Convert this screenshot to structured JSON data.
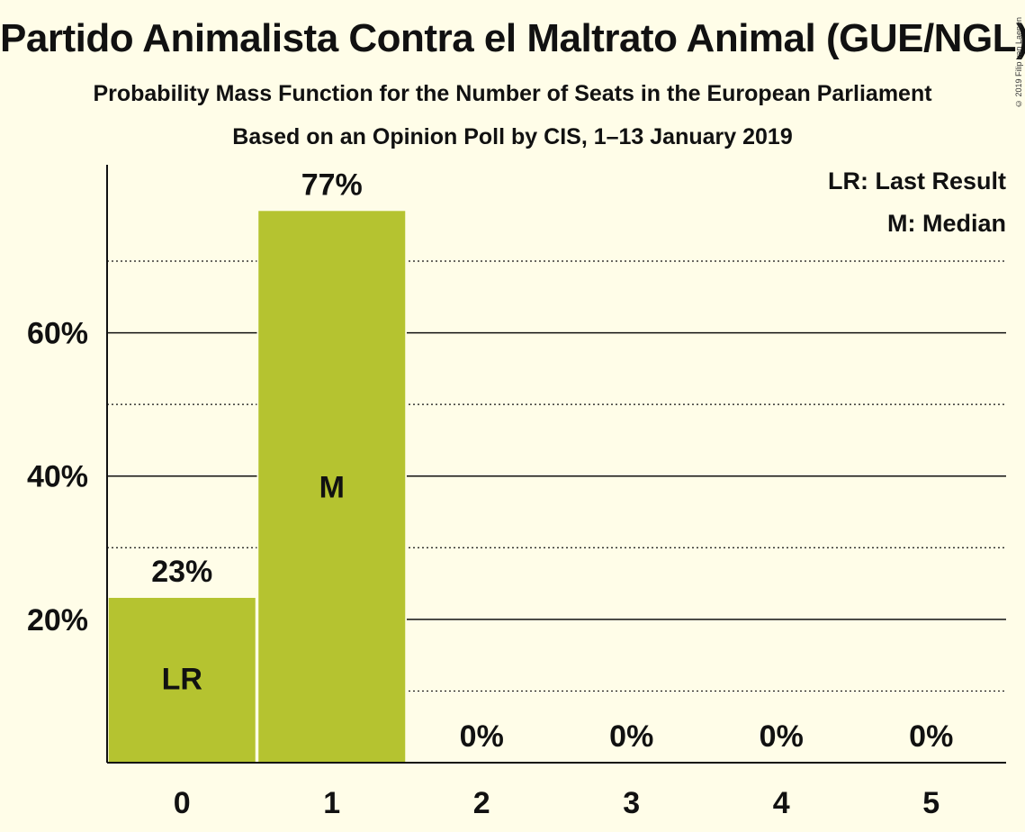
{
  "colors": {
    "bar": "#B5C330",
    "background": "#FFFDE8",
    "text": "#111111",
    "bar_label": "#FFFDE8"
  },
  "chart_data": {
    "type": "bar",
    "title": "Partido Animalista Contra el Maltrato Animal (GUE/NGL)",
    "subtitle": "Probability Mass Function for the Number of Seats in the European Parliament",
    "subtitle2": "Based on an Opinion Poll by CIS, 1–13 January 2019",
    "copyright": "© 2019 Filip van Laenen",
    "categories": [
      "0",
      "1",
      "2",
      "3",
      "4",
      "5"
    ],
    "values": [
      23,
      77,
      0,
      0,
      0,
      0
    ],
    "value_labels": [
      "23%",
      "77%",
      "0%",
      "0%",
      "0%",
      "0%"
    ],
    "bar_marks": [
      "LR",
      "M",
      "",
      "",
      "",
      ""
    ],
    "ylim": [
      0,
      83
    ],
    "yticks_major": [
      20,
      40,
      60
    ],
    "ytick_labels": [
      "20%",
      "40%",
      "60%"
    ],
    "yticks_minor": [
      10,
      30,
      50,
      70
    ],
    "legend": [
      "LR: Last Result",
      "M: Median"
    ],
    "legend_position": "top-right",
    "grid": true
  }
}
